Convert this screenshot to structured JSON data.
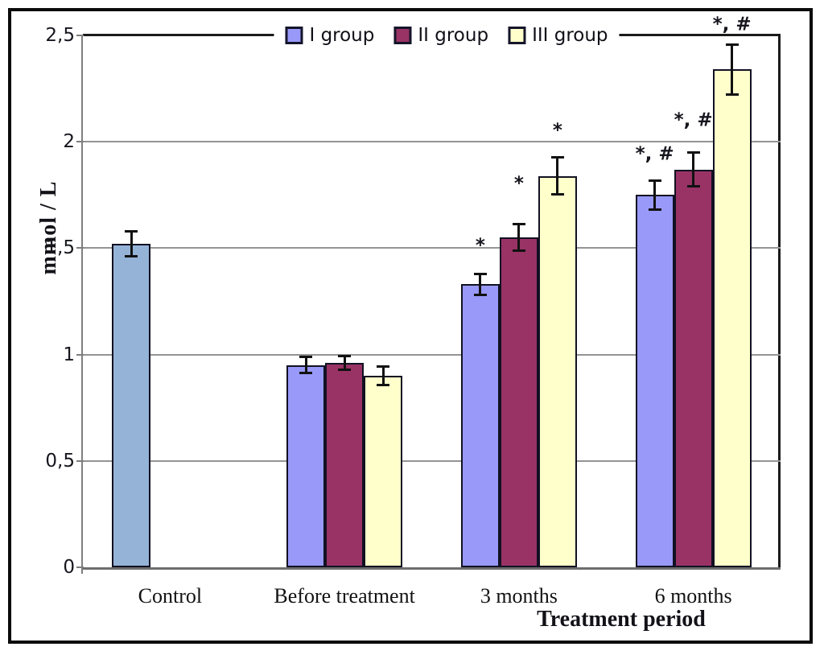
{
  "chart_data": {
    "type": "bar",
    "title": "",
    "ylabel": "mmol / L",
    "xlabel": "Treatment period",
    "ylim": [
      0,
      2.5
    ],
    "ytick_step": 0.5,
    "ytick_labels": [
      "0",
      "0,5",
      "1",
      "1,5",
      "2",
      "2,5"
    ],
    "decimal_style": "comma",
    "grid": "horizontal",
    "legend_position": "top-center",
    "categories": [
      "Control",
      "Before treatment",
      "3 months",
      "6 months"
    ],
    "legend": [
      "I group",
      "II group",
      "III group"
    ],
    "series": [
      {
        "name": "Control",
        "color": "#95B3D7",
        "slot": 0,
        "in_legend": false,
        "values": [
          1.52,
          null,
          null,
          null
        ],
        "errors": [
          0.06,
          null,
          null,
          null
        ],
        "annotations": [
          "",
          "",
          "",
          ""
        ],
        "annotation_y": [
          null,
          null,
          null,
          null
        ]
      },
      {
        "name": "I group",
        "color": "#9999FA",
        "slot": 0,
        "in_legend": true,
        "values": [
          null,
          0.95,
          1.33,
          1.75
        ],
        "errors": [
          null,
          0.04,
          0.05,
          0.07
        ],
        "annotations": [
          "",
          "",
          "*",
          "*, #"
        ],
        "annotation_y": [
          null,
          null,
          1.51,
          1.94
        ]
      },
      {
        "name": "II group",
        "color": "#993366",
        "slot": 1,
        "in_legend": true,
        "values": [
          null,
          0.96,
          1.55,
          1.87
        ],
        "errors": [
          null,
          0.035,
          0.065,
          0.08
        ],
        "annotations": [
          "",
          "",
          "*",
          "*, #"
        ],
        "annotation_y": [
          null,
          null,
          1.8,
          2.1
        ]
      },
      {
        "name": "III group",
        "color": "#FFFFCC",
        "slot": 2,
        "in_legend": true,
        "values": [
          null,
          0.9,
          1.84,
          2.34
        ],
        "errors": [
          null,
          0.045,
          0.09,
          0.12
        ],
        "annotations": [
          "",
          "",
          "*",
          "*, #"
        ],
        "annotation_y": [
          null,
          null,
          2.05,
          2.55
        ]
      }
    ],
    "colors": {
      "bar_border": "#111122",
      "gridline": "#949494",
      "axis_line": "#6e6e6e",
      "plot_border": "#1a1a1a",
      "plot_border_left": "#808080",
      "error_bar": "#111111",
      "text": "#15151f",
      "background": "#ffffff"
    }
  }
}
